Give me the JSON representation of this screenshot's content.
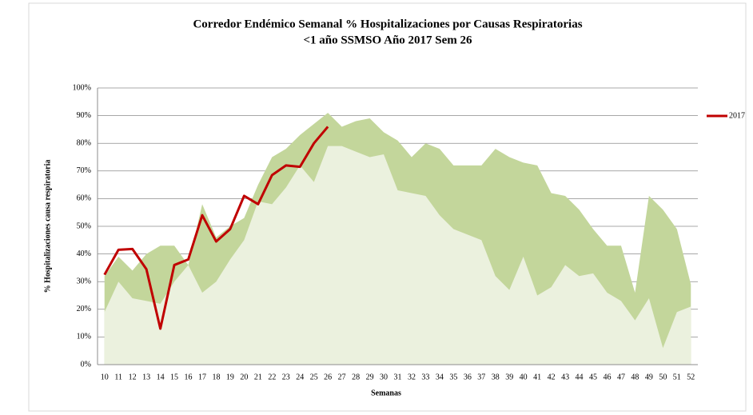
{
  "chart_data": {
    "type": "line",
    "title": [
      "Corredor Endémico Semanal % Hospitalizaciones por Causas Respiratorias",
      "<1 año SSMSO Año 2017 Sem 26"
    ],
    "xlabel": "Semanas",
    "ylabel": "% Hospitalizaciones causa respiratoria",
    "categories": [
      "10",
      "11",
      "12",
      "13",
      "14",
      "15",
      "16",
      "17",
      "18",
      "19",
      "20",
      "21",
      "22",
      "23",
      "24",
      "25",
      "26",
      "27",
      "28",
      "29",
      "30",
      "31",
      "32",
      "33",
      "34",
      "35",
      "36",
      "37",
      "38",
      "39",
      "40",
      "41",
      "42",
      "43",
      "44",
      "45",
      "46",
      "47",
      "48",
      "49",
      "50",
      "51",
      "52"
    ],
    "ylim": [
      0,
      100
    ],
    "yticks": [
      {
        "value": 0,
        "label": "0%"
      },
      {
        "value": 10,
        "label": "10%"
      },
      {
        "value": 20,
        "label": "20%"
      },
      {
        "value": 30,
        "label": "30%"
      },
      {
        "value": 40,
        "label": "40%"
      },
      {
        "value": 50,
        "label": "50%"
      },
      {
        "value": 60,
        "label": "60%"
      },
      {
        "value": 70,
        "label": "70%"
      },
      {
        "value": 80,
        "label": "80%"
      },
      {
        "value": 90,
        "label": "90%"
      },
      {
        "value": 100,
        "label": "100%"
      }
    ],
    "grid": true,
    "legend": "right",
    "areas": [
      {
        "color": "#c3d69b",
        "values": [
          32,
          39,
          34,
          40,
          43,
          43,
          36,
          58,
          46,
          50,
          53,
          65,
          75,
          78,
          83,
          87,
          91,
          86,
          88,
          89,
          84,
          81,
          75,
          80,
          78,
          72,
          72,
          72,
          78,
          75,
          73,
          72,
          62,
          61,
          56,
          49,
          43,
          43,
          26,
          61,
          56,
          49,
          29
        ]
      },
      {
        "color": "#ebf1de",
        "values": [
          19,
          30,
          24,
          23,
          22,
          30,
          36,
          26,
          30,
          38,
          45,
          59,
          58,
          64,
          72,
          66,
          79,
          79,
          77,
          75,
          76,
          63,
          62,
          61,
          54,
          49,
          47,
          45,
          32,
          27,
          39,
          25,
          28,
          36,
          32,
          33,
          26,
          23,
          16,
          24,
          6,
          19,
          21
        ]
      }
    ],
    "series": [
      {
        "name": "2017",
        "color": "#c00000",
        "values": [
          32.5,
          41.5,
          41.8,
          34.5,
          13,
          36,
          38,
          54,
          44.5,
          49,
          61,
          58,
          68.5,
          72,
          71.5,
          80,
          86,
          null,
          null,
          null,
          null,
          null,
          null,
          null,
          null,
          null,
          null,
          null,
          null,
          null,
          null,
          null,
          null,
          null,
          null,
          null,
          null,
          null,
          null,
          null,
          null,
          null,
          null
        ]
      }
    ]
  }
}
